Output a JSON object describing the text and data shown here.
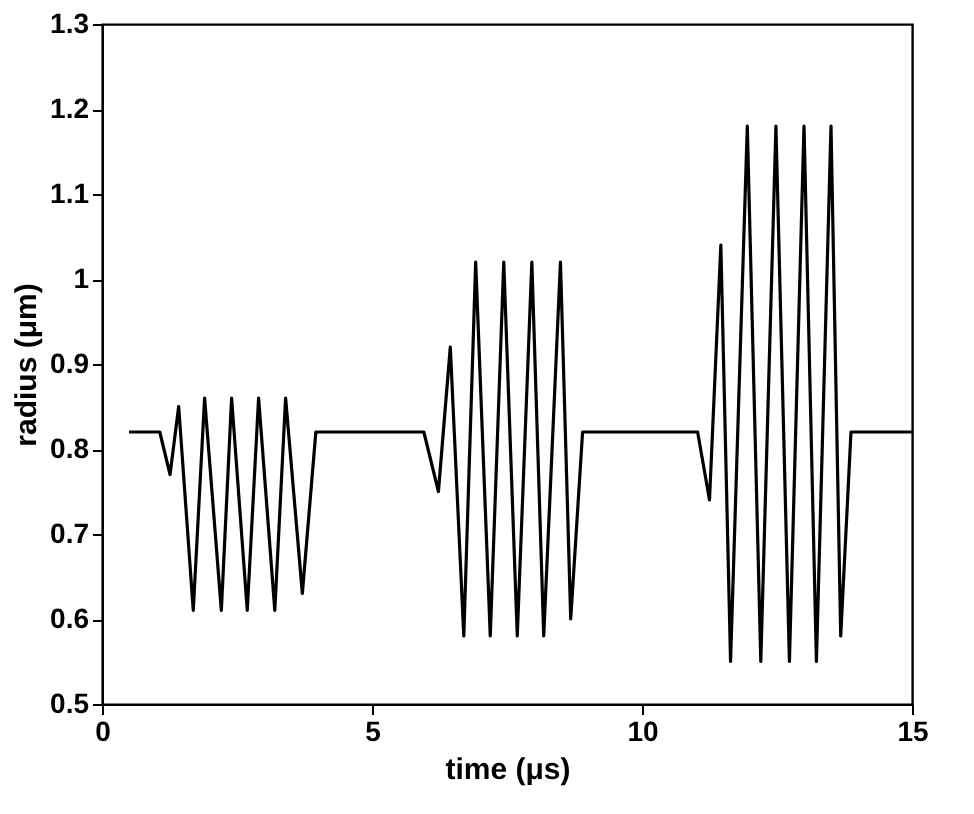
{
  "chart_data": {
    "type": "line",
    "xlabel": "time (μs)",
    "ylabel": "radius (μm)",
    "x": [
      0.5,
      1.07,
      1.26,
      1.42,
      1.69,
      1.9,
      2.21,
      2.4,
      2.69,
      2.9,
      3.2,
      3.4,
      3.71,
      3.96,
      5.96,
      6.23,
      6.45,
      6.7,
      6.92,
      7.19,
      7.44,
      7.69,
      7.96,
      8.18,
      8.49,
      8.68,
      8.9,
      11.03,
      11.25,
      11.46,
      11.64,
      11.95,
      12.2,
      12.48,
      12.73,
      13.0,
      13.23,
      13.5,
      13.68,
      13.87,
      15
    ],
    "series": [
      {
        "color": "#000000",
        "values": [
          0.82,
          0.82,
          0.77,
          0.85,
          0.61,
          0.86,
          0.61,
          0.86,
          0.61,
          0.86,
          0.61,
          0.86,
          0.63,
          0.82,
          0.82,
          0.75,
          0.92,
          0.58,
          1.02,
          0.58,
          1.02,
          0.58,
          1.02,
          0.58,
          1.02,
          0.6,
          0.82,
          0.82,
          0.74,
          1.04,
          0.55,
          1.18,
          0.55,
          1.18,
          0.55,
          1.18,
          0.55,
          1.18,
          0.58,
          0.82,
          0.82
        ]
      }
    ],
    "xlim": [
      0,
      15
    ],
    "xticks": [
      0,
      5,
      10,
      15
    ],
    "ylim": [
      0.5,
      1.3
    ],
    "yticks": [
      0.5,
      0.6,
      0.7,
      0.8,
      0.9,
      1,
      1.1,
      1.2,
      1.3
    ],
    "grid": false,
    "marker": "none",
    "line_style": "solid"
  }
}
